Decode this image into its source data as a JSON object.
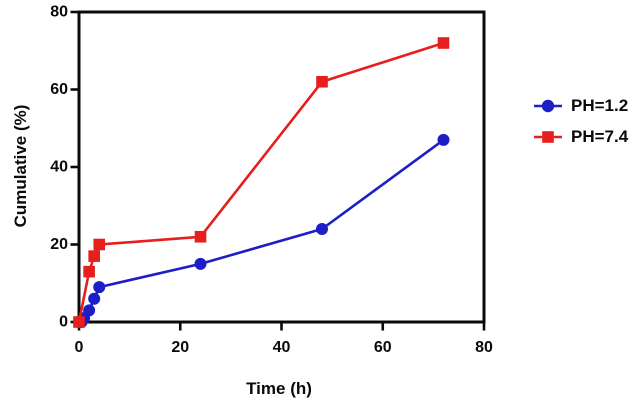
{
  "chart_data": {
    "type": "line",
    "title": "",
    "xlabel": "Time (h)",
    "ylabel": "Cumulative (%)",
    "xlim": [
      0,
      80
    ],
    "ylim": [
      0,
      80
    ],
    "xticks": [
      0,
      20,
      40,
      60,
      80
    ],
    "yticks": [
      0,
      20,
      40,
      60,
      80
    ],
    "grid": false,
    "frame": "full-box",
    "legend_position": "right-outside",
    "axis_color": "#0a0a0a",
    "series": [
      {
        "name": "PH=1.2",
        "color": "#1e1ec8",
        "marker": "circle",
        "points": [
          [
            0,
            0
          ],
          [
            0.5,
            0
          ],
          [
            1,
            1
          ],
          [
            2,
            3
          ],
          [
            3,
            6
          ],
          [
            4,
            9
          ],
          [
            24,
            15
          ],
          [
            48,
            24
          ],
          [
            72,
            47
          ]
        ]
      },
      {
        "name": "PH=7.4",
        "color": "#e61e1e",
        "marker": "square",
        "points": [
          [
            0,
            0
          ],
          [
            2,
            13
          ],
          [
            3,
            17
          ],
          [
            4,
            20
          ],
          [
            24,
            22
          ],
          [
            48,
            62
          ],
          [
            72,
            72
          ]
        ]
      }
    ]
  }
}
